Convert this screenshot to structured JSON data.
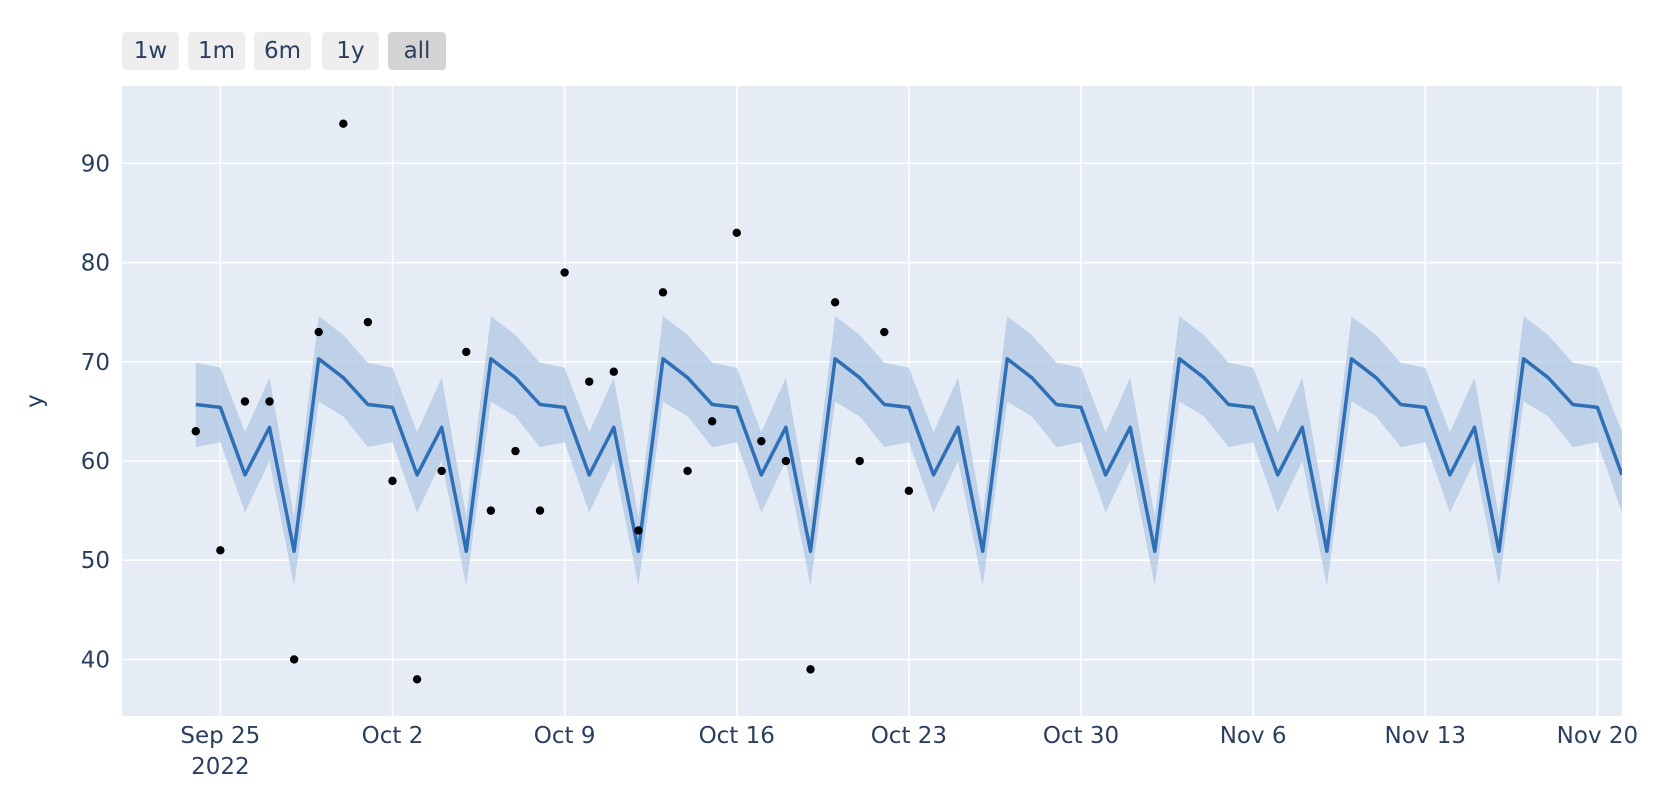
{
  "range_selector": {
    "buttons": [
      {
        "label": "1w",
        "active": false
      },
      {
        "label": "1m",
        "active": false
      },
      {
        "label": "6m",
        "active": false
      },
      {
        "label": "1y",
        "active": false
      },
      {
        "label": "all",
        "active": true
      }
    ]
  },
  "chart_data": {
    "type": "line",
    "title": "",
    "xlabel": "",
    "ylabel": "y",
    "xlim": [
      "2022-09-21",
      "2022-11-21"
    ],
    "ylim": [
      34.3,
      97.8
    ],
    "x_tick_labels": [
      "Sep 25\n2022",
      "Oct 2",
      "Oct 9",
      "Oct 16",
      "Oct 23",
      "Oct 30",
      "Nov 6",
      "Nov 13",
      "Nov 20"
    ],
    "x_tick_dates": [
      "2022-09-25",
      "2022-10-02",
      "2022-10-09",
      "2022-10-16",
      "2022-10-23",
      "2022-10-30",
      "2022-11-06",
      "2022-11-13",
      "2022-11-20"
    ],
    "y_ticks": [
      40,
      50,
      60,
      70,
      80,
      90
    ],
    "grid": true,
    "colors": {
      "plot_bg": "#e5ecf6",
      "grid": "#ffffff",
      "line": "#2e6fb5",
      "band": "#b0c8e3",
      "points": "#000000",
      "text": "#2a3f5f"
    },
    "forecast_start": "2022-09-24",
    "weekly_pattern": [
      65.7,
      65.4,
      58.6,
      63.4,
      50.9,
      70.3,
      68.4
    ],
    "upper_offsets": [
      4.2,
      4.0,
      4.3,
      5.0,
      3.5,
      4.3,
      4.3
    ],
    "lower_offsets": [
      4.3,
      3.5,
      3.8,
      3.4,
      3.5,
      4.3,
      3.9
    ],
    "actual": {
      "name": "",
      "x": [
        "2022-09-24",
        "2022-09-25",
        "2022-09-26",
        "2022-09-27",
        "2022-09-28",
        "2022-09-29",
        "2022-09-30",
        "2022-10-01",
        "2022-10-02",
        "2022-10-03",
        "2022-10-04",
        "2022-10-05",
        "2022-10-06",
        "2022-10-07",
        "2022-10-08",
        "2022-10-09",
        "2022-10-10",
        "2022-10-11",
        "2022-10-12",
        "2022-10-13",
        "2022-10-14",
        "2022-10-15",
        "2022-10-16",
        "2022-10-17",
        "2022-10-18",
        "2022-10-19",
        "2022-10-20",
        "2022-10-21",
        "2022-10-22",
        "2022-10-23"
      ],
      "y": [
        63,
        51,
        66,
        66,
        40,
        73,
        94,
        74,
        58,
        38,
        59,
        71,
        55,
        61,
        55,
        79,
        68,
        69,
        53,
        77,
        59,
        64,
        83,
        62,
        60,
        39,
        76,
        60,
        73,
        57
      ]
    }
  }
}
